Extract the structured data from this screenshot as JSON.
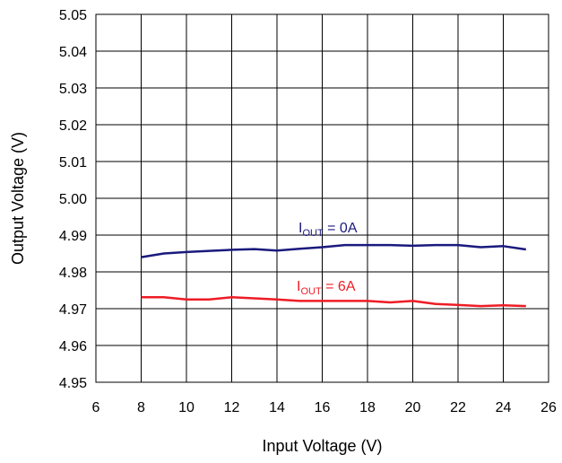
{
  "chart_data": {
    "type": "line",
    "title": "",
    "xlabel": "Input Voltage (V)",
    "ylabel": "Output Voltage (V)",
    "xlim": [
      6,
      26
    ],
    "ylim": [
      4.95,
      5.05
    ],
    "x_ticks": [
      6,
      8,
      10,
      12,
      14,
      16,
      18,
      20,
      22,
      24,
      26
    ],
    "y_ticks": [
      "4.95",
      "4.96",
      "4.97",
      "4.98",
      "4.99",
      "5.00",
      "5.01",
      "5.02",
      "5.03",
      "5.04",
      "5.05"
    ],
    "grid": true,
    "legend": "none",
    "series": [
      {
        "color": "#1a1a7e",
        "label_main": "I",
        "label_sub": "OUT",
        "label_tail": " = 0A",
        "x": [
          8,
          9,
          10,
          11,
          12,
          13,
          14,
          15,
          16,
          17,
          18,
          19,
          20,
          21,
          22,
          23,
          24,
          25
        ],
        "y": [
          4.984,
          4.985,
          4.9854,
          4.9857,
          4.986,
          4.9862,
          4.9858,
          4.9863,
          4.9867,
          4.9873,
          4.9873,
          4.9873,
          4.9871,
          4.9873,
          4.9873,
          4.9867,
          4.987,
          4.9861
        ]
      },
      {
        "color": "#ee1c25",
        "label_main": "I",
        "label_sub": "OUT",
        "label_tail": " = 6A",
        "x": [
          8,
          9,
          10,
          11,
          12,
          13,
          14,
          15,
          16,
          17,
          18,
          19,
          20,
          21,
          22,
          23,
          24,
          25
        ],
        "y": [
          4.9731,
          4.9731,
          4.9725,
          4.9725,
          4.9731,
          4.9728,
          4.9725,
          4.9721,
          4.9721,
          4.9721,
          4.9721,
          4.9717,
          4.9721,
          4.9713,
          4.971,
          4.9707,
          4.9709,
          4.9707
        ]
      }
    ]
  }
}
